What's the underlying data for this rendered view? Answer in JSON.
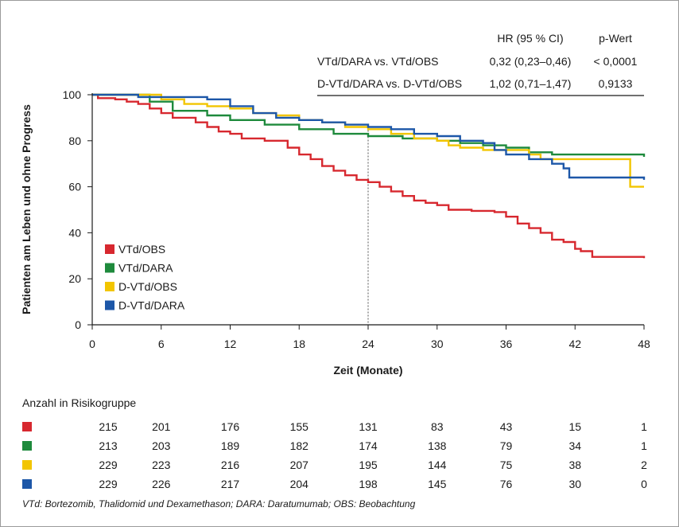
{
  "chart_data": {
    "type": "line",
    "subtype": "kaplan-meier step",
    "xlabel": "Zeit (Monate)",
    "ylabel": "Patienten am Leben und ohne Progress",
    "xlim": [
      0,
      48
    ],
    "ylim": [
      0,
      100
    ],
    "xticks": [
      0,
      6,
      12,
      18,
      24,
      30,
      36,
      42,
      48
    ],
    "yticks": [
      0,
      20,
      40,
      60,
      80,
      100
    ],
    "reference_line_x": 24,
    "legend_position": "bottom-left",
    "series": [
      {
        "name": "VTd/OBS",
        "color": "#d7282f",
        "points": [
          [
            0,
            100
          ],
          [
            0.5,
            98.5
          ],
          [
            2,
            98
          ],
          [
            3,
            97
          ],
          [
            4,
            96
          ],
          [
            5,
            94
          ],
          [
            6,
            92
          ],
          [
            7,
            90
          ],
          [
            9,
            88
          ],
          [
            10,
            86
          ],
          [
            11,
            84
          ],
          [
            12,
            83
          ],
          [
            13,
            81
          ],
          [
            15,
            80
          ],
          [
            17,
            77
          ],
          [
            18,
            74
          ],
          [
            19,
            72
          ],
          [
            20,
            69
          ],
          [
            21,
            67
          ],
          [
            22,
            65
          ],
          [
            23,
            63
          ],
          [
            24,
            62
          ],
          [
            25,
            60
          ],
          [
            26,
            58
          ],
          [
            27,
            56
          ],
          [
            28,
            54
          ],
          [
            29,
            53
          ],
          [
            30,
            52
          ],
          [
            31,
            50
          ],
          [
            33,
            49.5
          ],
          [
            35,
            49
          ],
          [
            36,
            47
          ],
          [
            37,
            44
          ],
          [
            38,
            42
          ],
          [
            39,
            40
          ],
          [
            40,
            37
          ],
          [
            41,
            36
          ],
          [
            42,
            33
          ],
          [
            42.5,
            32
          ],
          [
            43.5,
            29.5
          ],
          [
            48,
            29
          ]
        ]
      },
      {
        "name": "VTd/DARA",
        "color": "#1e8a3c",
        "points": [
          [
            0,
            100
          ],
          [
            4,
            100
          ],
          [
            5,
            97
          ],
          [
            7,
            93
          ],
          [
            10,
            91
          ],
          [
            12,
            89
          ],
          [
            15,
            87
          ],
          [
            18,
            85
          ],
          [
            21,
            83
          ],
          [
            24,
            82
          ],
          [
            27,
            81
          ],
          [
            30,
            80
          ],
          [
            32,
            79
          ],
          [
            34,
            78
          ],
          [
            36,
            77
          ],
          [
            38,
            75
          ],
          [
            40,
            74
          ],
          [
            42,
            74
          ],
          [
            47,
            74
          ],
          [
            48,
            73
          ]
        ]
      },
      {
        "name": "D-VTd/OBS",
        "color": "#f2c500",
        "points": [
          [
            0,
            100
          ],
          [
            4,
            100
          ],
          [
            6,
            98
          ],
          [
            8,
            96
          ],
          [
            10,
            95
          ],
          [
            12,
            94
          ],
          [
            14,
            92
          ],
          [
            16,
            91
          ],
          [
            18,
            89
          ],
          [
            20,
            88
          ],
          [
            22,
            86
          ],
          [
            24,
            85
          ],
          [
            26,
            83
          ],
          [
            28,
            81
          ],
          [
            30,
            80
          ],
          [
            31,
            78
          ],
          [
            32,
            77
          ],
          [
            34,
            76
          ],
          [
            36,
            76
          ],
          [
            38,
            74
          ],
          [
            39,
            72
          ],
          [
            42,
            72
          ],
          [
            46,
            72
          ],
          [
            46.8,
            72
          ],
          [
            46.8,
            60
          ],
          [
            48,
            60
          ]
        ]
      },
      {
        "name": "D-VTd/DARA",
        "color": "#1d57a8",
        "points": [
          [
            0,
            100
          ],
          [
            4,
            99
          ],
          [
            8,
            99
          ],
          [
            10,
            98
          ],
          [
            12,
            95
          ],
          [
            14,
            92
          ],
          [
            16,
            90
          ],
          [
            18,
            89
          ],
          [
            20,
            88
          ],
          [
            22,
            87
          ],
          [
            24,
            86
          ],
          [
            26,
            85
          ],
          [
            28,
            83
          ],
          [
            30,
            82
          ],
          [
            32,
            80
          ],
          [
            34,
            79
          ],
          [
            35,
            76
          ],
          [
            36,
            74
          ],
          [
            38,
            72
          ],
          [
            40,
            70
          ],
          [
            41,
            68
          ],
          [
            41.5,
            68
          ],
          [
            41.5,
            64
          ],
          [
            48,
            63
          ]
        ]
      }
    ],
    "hr_table": {
      "headers": [
        "HR (95 % CI)",
        "p-Wert"
      ],
      "rows": [
        {
          "label": "VTd/DARA vs. VTd/OBS",
          "hr": "0,32 (0,23–0,46)",
          "p": "< 0,0001"
        },
        {
          "label": "D-VTd/DARA vs. D-VTd/OBS",
          "hr": "1,02 (0,71–1,47)",
          "p": "0,9133"
        }
      ]
    },
    "risk_table": {
      "title": "Anzahl in Risikogruppe",
      "rows": [
        {
          "color": "#d7282f",
          "values": [
            215,
            201,
            176,
            155,
            131,
            83,
            43,
            15,
            1
          ]
        },
        {
          "color": "#1e8a3c",
          "values": [
            213,
            203,
            189,
            182,
            174,
            138,
            79,
            34,
            1
          ]
        },
        {
          "color": "#f2c500",
          "values": [
            229,
            223,
            216,
            207,
            195,
            144,
            75,
            38,
            2
          ]
        },
        {
          "color": "#1d57a8",
          "values": [
            229,
            226,
            217,
            204,
            198,
            145,
            76,
            30,
            0
          ]
        }
      ]
    },
    "footnote": "VTd: Bortezomib, Thalidomid und Dexamethason; DARA: Daratumumab; OBS: Beobachtung"
  }
}
